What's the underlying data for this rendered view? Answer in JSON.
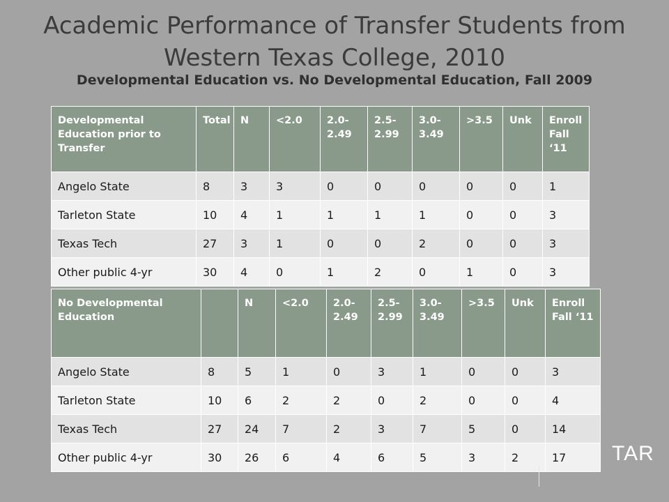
{
  "title": "Academic Performance of Transfer Students from Western Texas College, 2010",
  "subtitle": "Developmental Education vs. No Developmental Education, Fall 2009",
  "watermark": "TAR",
  "table1": {
    "headers": [
      "Developmental Education prior to Transfer",
      "Total",
      "N",
      "<2.0",
      "2.0- 2.49",
      "2.5- 2.99",
      "3.0- 3.49",
      ">3.5",
      "Unk",
      "Enroll Fall ‘11"
    ],
    "rows": [
      [
        "Angelo State",
        "8",
        "3",
        "3",
        "0",
        "0",
        "0",
        "0",
        "0",
        "1"
      ],
      [
        "Tarleton State",
        "10",
        "4",
        "1",
        "1",
        "1",
        "1",
        "0",
        "0",
        "3"
      ],
      [
        "Texas Tech",
        "27",
        "3",
        "1",
        "0",
        "0",
        "2",
        "0",
        "0",
        "3"
      ],
      [
        " Other public 4-yr",
        "30",
        "4",
        "0",
        "1",
        "2",
        "0",
        "1",
        "0",
        "3"
      ]
    ]
  },
  "table2": {
    "headers": [
      "No Developmental Education",
      "",
      "N",
      "<2.0",
      "2.0- 2.49",
      "2.5- 2.99",
      "3.0- 3.49",
      ">3.5",
      "Unk",
      "Enroll Fall ‘11"
    ],
    "rows": [
      [
        "Angelo State",
        "8",
        "5",
        "1",
        "0",
        "3",
        "1",
        "0",
        "0",
        "3"
      ],
      [
        "Tarleton State",
        "10",
        "6",
        "2",
        "2",
        "0",
        "2",
        "0",
        "0",
        "4"
      ],
      [
        "Texas Tech",
        "27",
        "24",
        "7",
        "2",
        "3",
        "7",
        "5",
        "0",
        "14"
      ],
      [
        " Other public 4-yr",
        "30",
        "26",
        "6",
        "4",
        "6",
        "5",
        "3",
        "2",
        "17"
      ]
    ]
  }
}
